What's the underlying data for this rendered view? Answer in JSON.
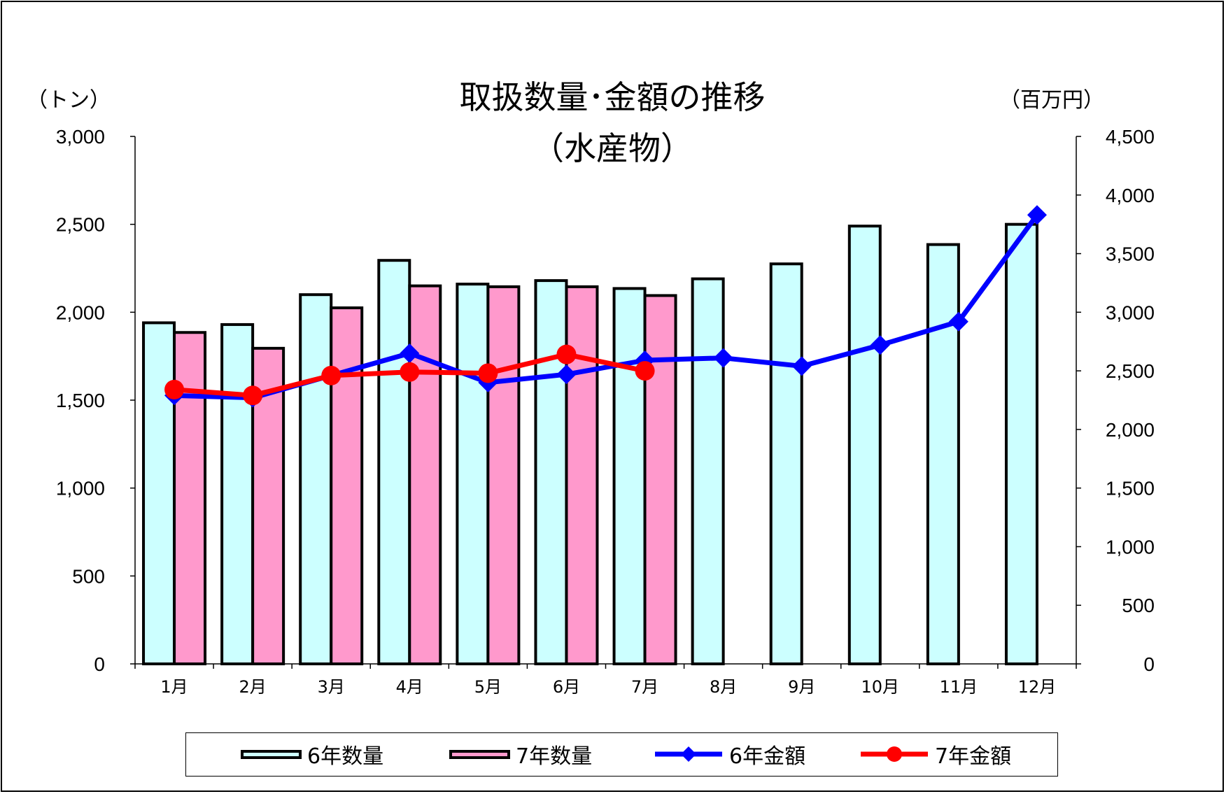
{
  "title_line1": "取扱数量･金額の推移",
  "title_line2": "（水産物）",
  "left_unit": "（トン）",
  "right_unit": "（百万円）",
  "colors": {
    "qty6": "#ccffff",
    "qty7": "#ff99cc",
    "amt6": "#0000ff",
    "amt7": "#ff0000"
  },
  "chart_data": {
    "type": "bar",
    "categories": [
      "1月",
      "2月",
      "3月",
      "4月",
      "5月",
      "6月",
      "7月",
      "8月",
      "9月",
      "10月",
      "11月",
      "12月"
    ],
    "y_left": {
      "min": 0,
      "max": 3000,
      "step": 500,
      "ticks": [
        "0",
        "500",
        "1,000",
        "1,500",
        "2,000",
        "2,500",
        "3,000"
      ]
    },
    "y_right": {
      "min": 0,
      "max": 4500,
      "step": 500,
      "ticks": [
        "0",
        "500",
        "1,000",
        "1,500",
        "2,000",
        "2,500",
        "3,000",
        "3,500",
        "4,000",
        "4,500"
      ]
    },
    "series": [
      {
        "name": "6年数量",
        "type": "bar",
        "axis": "left",
        "values": [
          1940,
          1930,
          2100,
          2295,
          2160,
          2180,
          2135,
          2190,
          2275,
          2490,
          2385,
          2500
        ]
      },
      {
        "name": "7年数量",
        "type": "bar",
        "axis": "left",
        "values": [
          1885,
          1795,
          2025,
          2150,
          2145,
          2145,
          2095,
          null,
          null,
          null,
          null,
          null
        ]
      },
      {
        "name": "6年金額",
        "type": "line",
        "marker": "diamond",
        "axis": "right",
        "values": [
          2290,
          2270,
          2460,
          2650,
          2400,
          2470,
          2590,
          2610,
          2540,
          2720,
          2920,
          3830
        ]
      },
      {
        "name": "7年金額",
        "type": "line",
        "marker": "circle",
        "axis": "right",
        "values": [
          2340,
          2290,
          2460,
          2490,
          2480,
          2640,
          2500,
          null,
          null,
          null,
          null,
          null
        ]
      }
    ],
    "grid": false,
    "legend": "bottom"
  }
}
